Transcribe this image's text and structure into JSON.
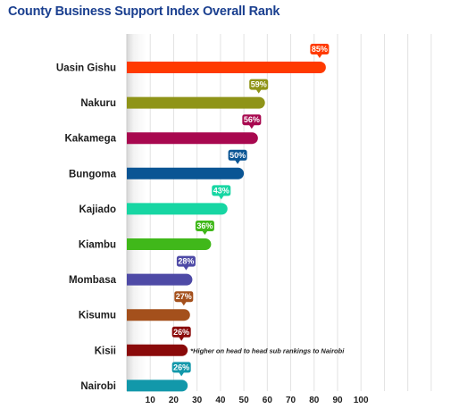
{
  "chart_data": {
    "type": "bar",
    "orientation": "horizontal",
    "title": "County Business Support Index Overall Rank",
    "categories": [
      "Uasin Gishu",
      "Nakuru",
      "Kakamega",
      "Bungoma",
      "Kajiado",
      "Kiambu",
      "Mombasa",
      "Kisumu",
      "Kisii",
      "Nairobi"
    ],
    "values": [
      85,
      59,
      56,
      50,
      43,
      36,
      28,
      27,
      26,
      26
    ],
    "data_labels": [
      "85%",
      "59%",
      "56%",
      "50%",
      "43%",
      "36%",
      "28%",
      "27%",
      "26%",
      "26%"
    ],
    "colors": [
      "#ff3a00",
      "#8f9418",
      "#a8084f",
      "#0a5594",
      "#17d6a3",
      "#40b81a",
      "#4e4aa6",
      "#a4501c",
      "#8a0a0a",
      "#1298aa"
    ],
    "xticks": [
      "10",
      "20",
      "30",
      "40",
      "50",
      "60",
      "70",
      "80",
      "90",
      "100"
    ],
    "xlim": [
      0,
      135
    ],
    "grid": true,
    "annotations": [
      {
        "category": "Kisii",
        "text": "*Higher on head to head sub rankings to Nairobi"
      }
    ]
  }
}
